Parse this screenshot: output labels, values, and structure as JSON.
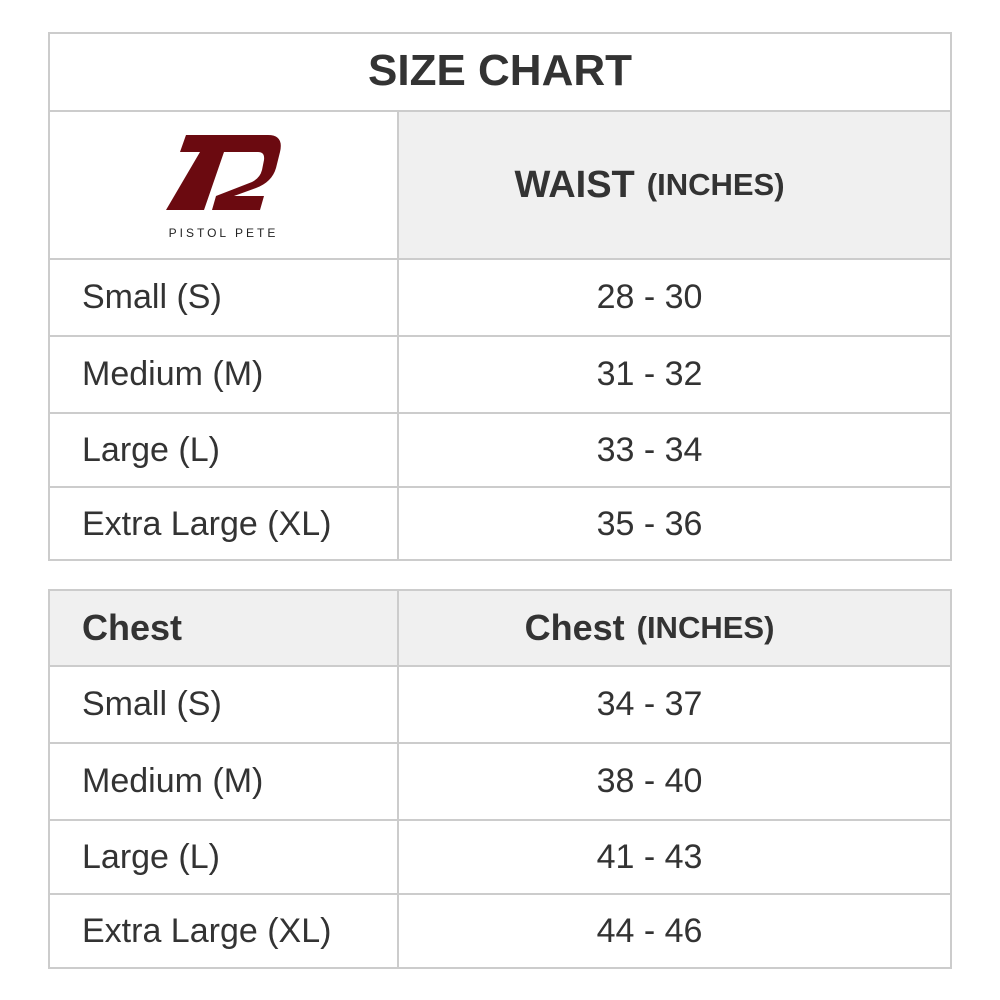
{
  "title": "SIZE CHART",
  "logo": {
    "text": "PISTOL PETE",
    "color": "#6b0a10"
  },
  "waist": {
    "header": "WAIST",
    "unit": "(INCHES)",
    "rows": [
      {
        "size": "Small (S)",
        "range": "28 - 30"
      },
      {
        "size": "Medium (M)",
        "range": "31 - 32"
      },
      {
        "size": "Large (L)",
        "range": "33 - 34"
      },
      {
        "size": "Extra Large (XL)",
        "range": "35 - 36"
      }
    ]
  },
  "chest": {
    "label": "Chest",
    "header": "Chest",
    "unit": "(INCHES)",
    "rows": [
      {
        "size": "Small (S)",
        "range": "34 - 37"
      },
      {
        "size": "Medium (M)",
        "range": "38 - 40"
      },
      {
        "size": "Large (L)",
        "range": "41 - 43"
      },
      {
        "size": "Extra Large (XL)",
        "range": "44 - 46"
      }
    ]
  }
}
